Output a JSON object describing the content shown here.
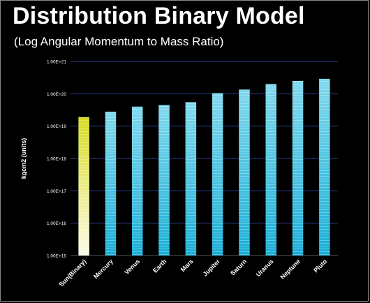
{
  "chart_data": {
    "type": "bar",
    "title": "Distribution Binary Model",
    "subtitle": "(Log Angular Momentum to Mass Ratio)",
    "ylabel": "kgcm2 (units)",
    "xlabel": "",
    "yscale": "log",
    "ylim": [
      1000000000000000.0,
      1e+21
    ],
    "yticks": [
      "1.00E+15",
      "1.00E+16",
      "1.00E+17",
      "1.00E+18",
      "1.00E+19",
      "1.00E+20",
      "1.00E+21"
    ],
    "grid": true,
    "legend": "none",
    "categories": [
      "Sun(Binary)",
      "Mercury",
      "Venus",
      "Earth",
      "Mars",
      "Jupiter",
      "Saturn",
      "Uranus",
      "Neptune",
      "Pluto"
    ],
    "values": [
      1.9e+19,
      2.8e+19,
      4e+19,
      4.5e+19,
      5.5e+19,
      1.05e+20,
      1.35e+20,
      2e+20,
      2.5e+20,
      2.9e+20
    ],
    "colors": {
      "highlight_top": "#d8dc1e",
      "highlight_bottom": "#fbfbe9",
      "bar_top": "#7fd8ec",
      "bar_bottom": "#1aaed6",
      "grid": "#2b3f96",
      "axis_text": "#ffffff"
    }
  }
}
